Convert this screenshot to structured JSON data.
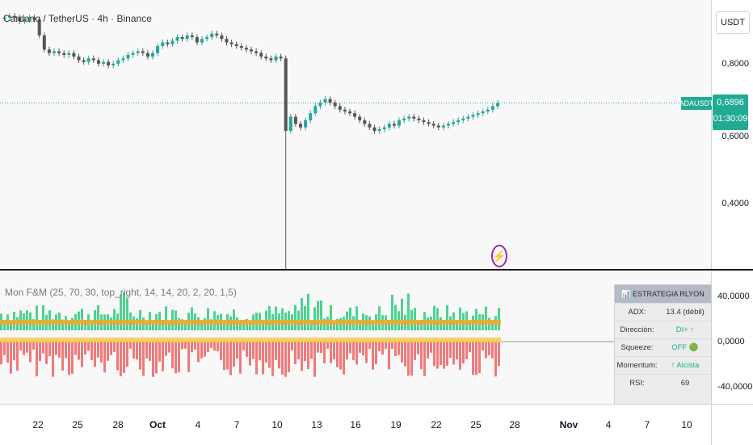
{
  "main_chart": {
    "title": "Cardano / TetherUS · 4h · Binance",
    "currency_button": "USDT",
    "symbol_tag": "ADAUSDT",
    "last_price": "0,6896",
    "countdown": "01:30:09",
    "axis_labels": [
      "0,8000",
      "0,6000",
      "0,4000"
    ],
    "up_color": "#26a69a",
    "down_color": "#555555"
  },
  "indicator": {
    "title": "Mon F&M (25, 70, 30, top_right, 14, 14, 20, 2, 20, 1,5)",
    "axis_labels": [
      "40,0000",
      "0,0000",
      "-40,0000"
    ],
    "positive_color": "#4cd391",
    "negative_color": "#f07a7a"
  },
  "strategy_panel": {
    "header": "📊 ESTRATEGIA RLYON",
    "rows": [
      {
        "key": "ADX:",
        "value": "13.4 (débil)"
      },
      {
        "key": "Dirección:",
        "value": "DI+ ↑"
      },
      {
        "key": "Squeeze:",
        "value": "OFF 🟢"
      },
      {
        "key": "Momentum:",
        "value": "↑ Alcista"
      },
      {
        "key": "RSI:",
        "value": "69"
      }
    ]
  },
  "time_axis": {
    "ticks": [
      {
        "label": "22",
        "bold": false
      },
      {
        "label": "25",
        "bold": false
      },
      {
        "label": "28",
        "bold": false
      },
      {
        "label": "Oct",
        "bold": true
      },
      {
        "label": "4",
        "bold": false
      },
      {
        "label": "7",
        "bold": false
      },
      {
        "label": "10",
        "bold": false
      },
      {
        "label": "13",
        "bold": false
      },
      {
        "label": "16",
        "bold": false
      },
      {
        "label": "19",
        "bold": false
      },
      {
        "label": "22",
        "bold": false
      },
      {
        "label": "25",
        "bold": false
      },
      {
        "label": "28",
        "bold": false
      },
      {
        "label": "Nov",
        "bold": true
      },
      {
        "label": "4",
        "bold": false
      },
      {
        "label": "7",
        "bold": false
      },
      {
        "label": "10",
        "bold": false
      }
    ]
  },
  "chart_data": {
    "type": "candlestick",
    "title": "Cardano / TetherUS · 4h · Binance",
    "ylim": [
      0.22,
      0.98
    ],
    "close_series": [
      0.93,
      0.935,
      0.93,
      0.92,
      0.925,
      0.93,
      0.925,
      0.88,
      0.84,
      0.83,
      0.835,
      0.83,
      0.825,
      0.83,
      0.82,
      0.81,
      0.805,
      0.815,
      0.81,
      0.8,
      0.805,
      0.795,
      0.8,
      0.81,
      0.815,
      0.825,
      0.83,
      0.835,
      0.83,
      0.82,
      0.83,
      0.85,
      0.86,
      0.855,
      0.865,
      0.875,
      0.87,
      0.88,
      0.875,
      0.86,
      0.87,
      0.875,
      0.885,
      0.88,
      0.87,
      0.86,
      0.855,
      0.85,
      0.845,
      0.84,
      0.835,
      0.83,
      0.82,
      0.815,
      0.81,
      0.82,
      0.815,
      0.61,
      0.65,
      0.63,
      0.62,
      0.64,
      0.66,
      0.68,
      0.69,
      0.7,
      0.69,
      0.68,
      0.67,
      0.665,
      0.66,
      0.65,
      0.64,
      0.63,
      0.62,
      0.61,
      0.615,
      0.62,
      0.63,
      0.625,
      0.64,
      0.645,
      0.65,
      0.645,
      0.64,
      0.635,
      0.63,
      0.625,
      0.62,
      0.625,
      0.63,
      0.635,
      0.64,
      0.645,
      0.65,
      0.655,
      0.66,
      0.665,
      0.67,
      0.68,
      0.689
    ],
    "spike_low": 0.2
  }
}
